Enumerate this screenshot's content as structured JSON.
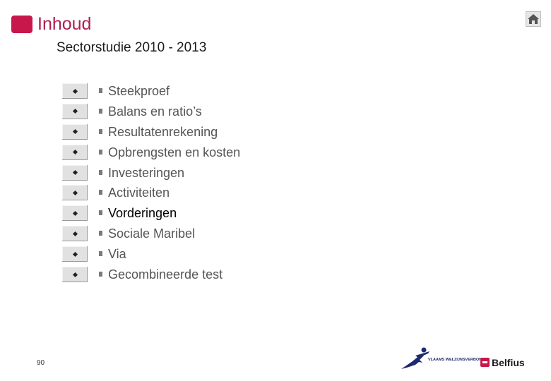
{
  "header": {
    "title": "Inhoud",
    "subtitle": "Sectorstudie 2010 - 2013",
    "home_icon": "home-icon"
  },
  "menu": {
    "bullet_glyph": "§",
    "active_index": 6,
    "items": [
      {
        "label": "Steekproef"
      },
      {
        "label": "Balans en ratio’s"
      },
      {
        "label": "Resultatenrekening"
      },
      {
        "label": "Opbrengsten en kosten"
      },
      {
        "label": "Investeringen"
      },
      {
        "label": "Activiteiten"
      },
      {
        "label": "Vorderingen"
      },
      {
        "label": "Sociale Maribel"
      },
      {
        "label": "Via"
      },
      {
        "label": "Gecombineerde test"
      }
    ]
  },
  "footer": {
    "page_number": "90",
    "vwv_logo_text": "VLAAMS WELZIJNSVERBOND",
    "belfius_logo_text": "Belfius"
  },
  "colors": {
    "accent": "#c8174b",
    "title": "#b01e50"
  }
}
